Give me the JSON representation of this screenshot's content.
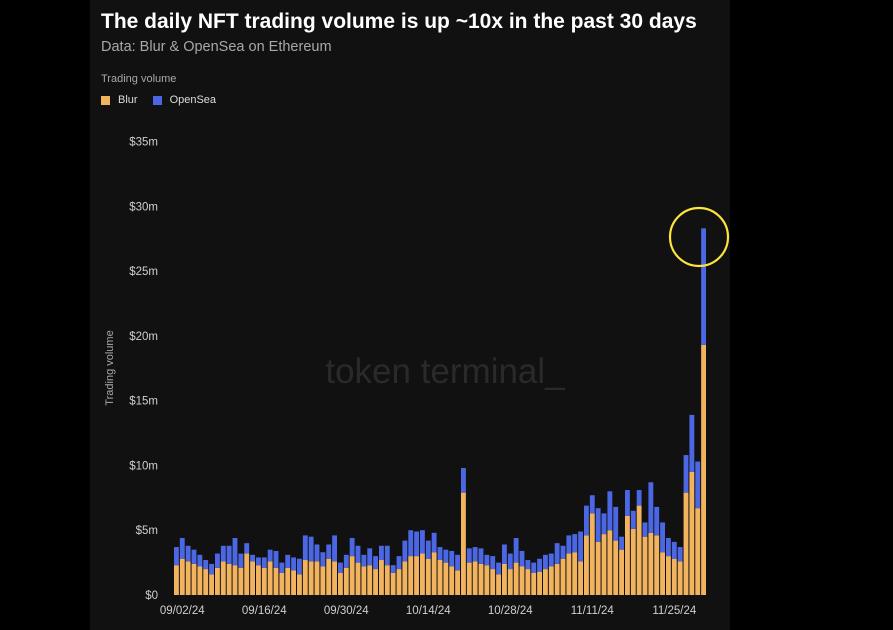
{
  "colors": {
    "background": "#000000",
    "panel": "#111111",
    "blur": "#f2b35f",
    "opensea": "#4c67e3",
    "highlight_circle": "#ffe43a",
    "tick_text": "#cfcfcf",
    "watermark": "#2a2a2a"
  },
  "header": {
    "title": "The daily NFT trading volume is up ~10x in the past 30 days",
    "subtitle": "Data: Blur & OpenSea on Ethereum"
  },
  "legend": {
    "title": "Trading volume",
    "items": [
      {
        "label": "Blur",
        "color": "#f2b35f"
      },
      {
        "label": "OpenSea",
        "color": "#4c67e3"
      }
    ]
  },
  "watermark": {
    "text": "token terminal",
    "cursor": "_"
  },
  "chart_data": {
    "type": "bar",
    "stacked": true,
    "title": "The daily NFT trading volume is up ~10x in the past 30 days",
    "subtitle": "Data: Blur & OpenSea on Ethereum",
    "xlabel": "",
    "ylabel": "Trading volume",
    "ylim": [
      0,
      35
    ],
    "y_unit": "$m",
    "y_ticks": [
      "$0",
      "$5m",
      "$10m",
      "$15m",
      "$20m",
      "$25m",
      "$30m",
      "$35m"
    ],
    "x_ticks": [
      "09/02/24",
      "09/16/24",
      "09/30/24",
      "10/14/24",
      "10/28/24",
      "11/11/24",
      "11/25/24"
    ],
    "legend_position": "top-left",
    "grid": false,
    "annotation": "circle highlighting the last bar",
    "start_date": "2024-09-01",
    "series": [
      {
        "name": "Blur",
        "values": [
          2.3,
          2.8,
          2.6,
          2.4,
          2.2,
          2.0,
          1.6,
          2.1,
          2.6,
          2.4,
          2.3,
          2.1,
          3.2,
          2.6,
          2.3,
          2.1,
          2.6,
          2.1,
          1.7,
          2.1,
          1.9,
          1.6,
          2.7,
          2.6,
          2.6,
          2.2,
          2.8,
          2.6,
          1.7,
          2.1,
          3.0,
          2.5,
          2.2,
          2.3,
          2.0,
          2.7,
          2.3,
          1.7,
          2.0,
          2.6,
          3.0,
          3.0,
          3.2,
          2.8,
          3.3,
          2.7,
          2.5,
          2.2,
          1.9,
          7.9,
          2.5,
          2.6,
          2.4,
          2.3,
          2.0,
          1.6,
          2.4,
          2.0,
          2.5,
          2.2,
          2.0,
          1.7,
          1.8,
          2.0,
          2.2,
          2.4,
          2.8,
          3.2,
          3.3,
          2.6,
          4.6,
          6.3,
          4.1,
          4.7,
          5.0,
          4.2,
          3.5,
          6.1,
          5.1,
          6.9,
          4.5,
          4.8,
          4.6,
          3.3,
          3.0,
          2.8,
          2.6,
          7.9,
          9.5,
          6.7,
          19.3
        ]
      },
      {
        "name": "OpenSea",
        "values": [
          1.4,
          1.6,
          1.2,
          1.1,
          0.9,
          0.7,
          0.8,
          1.1,
          1.2,
          1.4,
          2.1,
          1.1,
          0.8,
          0.5,
          0.6,
          0.8,
          0.9,
          1.3,
          0.8,
          1.0,
          1.0,
          1.2,
          1.9,
          1.9,
          1.3,
          1.1,
          1.1,
          2.0,
          0.8,
          1.0,
          1.4,
          1.3,
          0.9,
          1.3,
          1.0,
          1.1,
          1.5,
          0.6,
          1.0,
          1.6,
          2.0,
          1.9,
          1.8,
          1.4,
          1.5,
          1.0,
          1.0,
          1.2,
          1.2,
          1.9,
          1.1,
          1.1,
          1.2,
          0.8,
          1.0,
          0.9,
          1.5,
          1.2,
          1.9,
          1.2,
          0.7,
          0.8,
          1.0,
          1.1,
          1.0,
          1.6,
          1.0,
          1.4,
          1.4,
          2.3,
          2.3,
          1.4,
          2.6,
          1.6,
          3.0,
          2.6,
          1.0,
          2.0,
          1.4,
          1.2,
          1.1,
          3.9,
          2.2,
          2.3,
          1.4,
          1.3,
          1.1,
          2.9,
          4.4,
          3.6,
          9.0
        ]
      }
    ]
  }
}
